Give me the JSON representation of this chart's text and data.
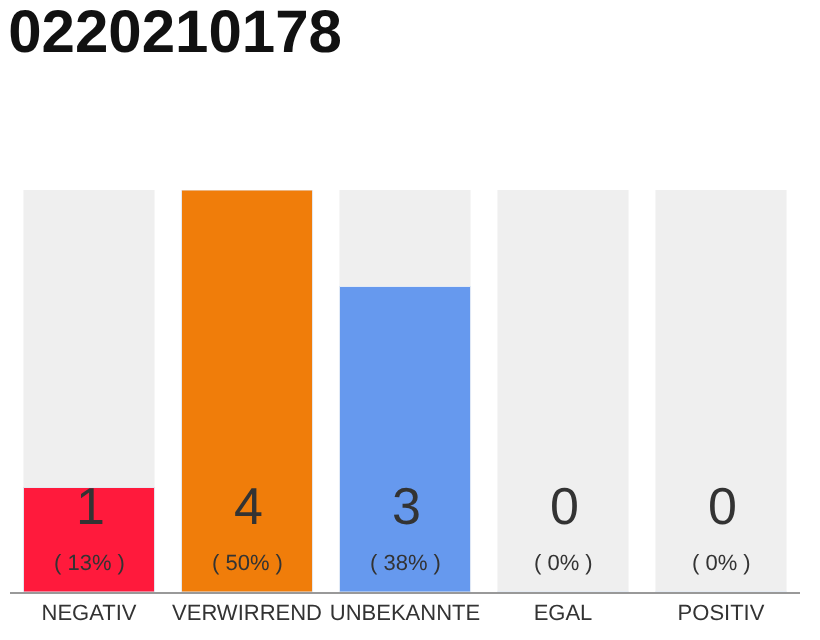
{
  "chart_data": {
    "type": "bar",
    "title": "0220210178",
    "categories": [
      "NEGATIV",
      "VERWIRREND",
      "UNBEKANNTE",
      "EGAL",
      "POSITIV"
    ],
    "values": [
      13,
      50,
      38,
      0,
      0
    ],
    "colors": [
      "#ff1a3c",
      "#f07d0a",
      "#6699ee",
      null,
      null
    ],
    "value_labels": [
      "( 13% )",
      "( 50% )",
      "( 38% )",
      "( 0% )",
      "( 0% )"
    ],
    "annotations": [
      "1",
      "4",
      "3",
      "0",
      "0"
    ],
    "tick_labels": "x",
    "grid": false,
    "legend": false
  }
}
